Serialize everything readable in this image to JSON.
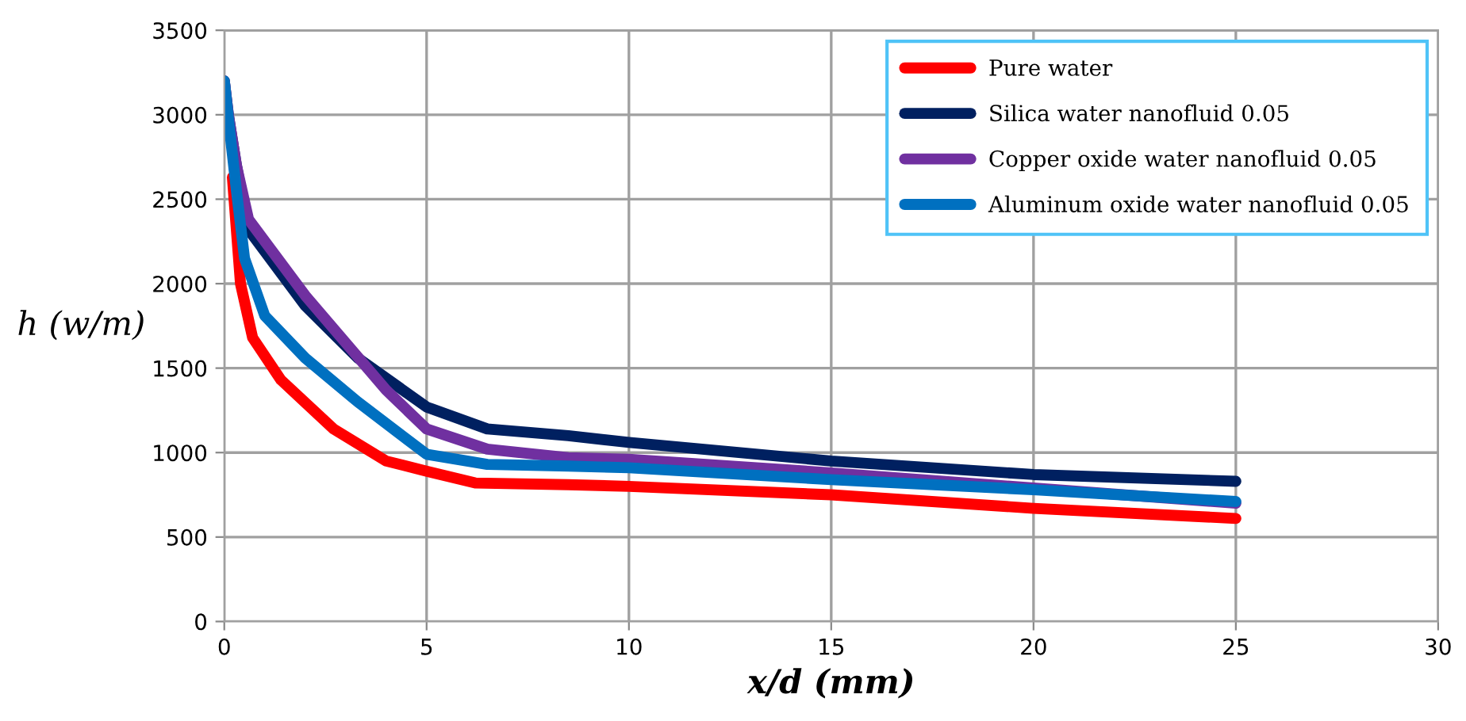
{
  "chart_data": {
    "type": "line",
    "xlabel": "x/d (mm)",
    "ylabel": "h (w/m)",
    "xlim": [
      0,
      30
    ],
    "xticks": [
      0,
      5,
      10,
      15,
      20,
      25,
      30
    ],
    "ylim": [
      0,
      3500
    ],
    "yticks": [
      0,
      500,
      1000,
      1500,
      2000,
      2500,
      3000,
      3500
    ],
    "grid": true,
    "legend": "top right",
    "marker": "none",
    "line_style": "solid",
    "series": [
      {
        "name": "Pure water",
        "color": "#ff0000",
        "x": [
          0.2,
          0.4,
          0.7,
          1.4,
          2.7,
          4,
          5,
          6.2,
          8.5,
          10,
          15,
          20,
          25
        ],
        "values": [
          2630,
          2000,
          1680,
          1430,
          1140,
          950,
          890,
          820,
          810,
          800,
          750,
          670,
          610
        ]
      },
      {
        "name": "Silica water nanofluid 0.05",
        "color": "#002060",
        "x": [
          0,
          0.1,
          0.3,
          0.6,
          2,
          3.3,
          5,
          6.5,
          8.5,
          10,
          15,
          20,
          25
        ],
        "values": [
          3200,
          3000,
          2700,
          2320,
          1870,
          1560,
          1270,
          1140,
          1100,
          1060,
          950,
          870,
          830
        ]
      },
      {
        "name": "Copper oxide water nanofluid 0.05",
        "color": "#7030a0",
        "x": [
          0,
          0.1,
          0.3,
          0.6,
          2,
          4,
          5,
          6.5,
          8.5,
          10,
          15,
          20,
          25
        ],
        "values": [
          3200,
          3000,
          2700,
          2380,
          1930,
          1370,
          1140,
          1020,
          970,
          960,
          880,
          790,
          700
        ]
      },
      {
        "name": "Aluminum oxide water nanofluid 0.05",
        "color": "#0070c0",
        "x": [
          0,
          0.1,
          0.3,
          0.5,
          1,
          2,
          3.3,
          5,
          6.5,
          8.5,
          10,
          15,
          20,
          25
        ],
        "values": [
          3200,
          2980,
          2550,
          2150,
          1810,
          1560,
          1300,
          990,
          930,
          920,
          910,
          840,
          780,
          710
        ]
      }
    ]
  }
}
